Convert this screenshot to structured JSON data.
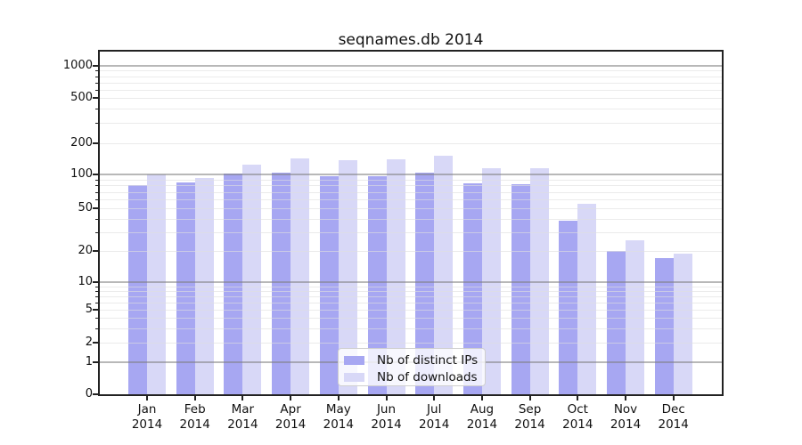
{
  "chart_data": {
    "type": "bar",
    "title": "seqnames.db 2014",
    "categories": [
      "Jan",
      "Feb",
      "Mar",
      "Apr",
      "May",
      "Jun",
      "Jul",
      "Aug",
      "Sep",
      "Oct",
      "Nov",
      "Dec"
    ],
    "category_year": "2014",
    "series": [
      {
        "name": "Nb of distinct IPs",
        "color": "#a7a7f2",
        "values": [
          80,
          85,
          103,
          104,
          96,
          97,
          104,
          83,
          82,
          38,
          20,
          17
        ]
      },
      {
        "name": "Nb of downloads",
        "color": "#d8d8f7",
        "values": [
          100,
          93,
          124,
          143,
          136,
          139,
          151,
          116,
          114,
          55,
          25,
          19
        ]
      }
    ],
    "y_ticks": [
      0,
      1,
      2,
      5,
      10,
      20,
      50,
      100,
      200,
      500,
      1000
    ],
    "y_tick_labels": [
      "0",
      "1",
      "2",
      "5",
      "10",
      "20",
      "50",
      "100",
      "200",
      "500",
      "1000"
    ],
    "ylim": [
      0,
      1000
    ],
    "y_scale": "log-like (compressed near zero)",
    "grid": {
      "major_levels": [
        1,
        10,
        100,
        1000
      ],
      "minor_levels_rule": "2-9 within each decade",
      "major_color": "#b0b0b0",
      "minor_color": "#ececec"
    },
    "legend": {
      "position": "inside lower-center",
      "entries": [
        "Nb of distinct IPs",
        "Nb of downloads"
      ]
    },
    "frame_color": "#222222",
    "background_color": "#ffffff"
  }
}
